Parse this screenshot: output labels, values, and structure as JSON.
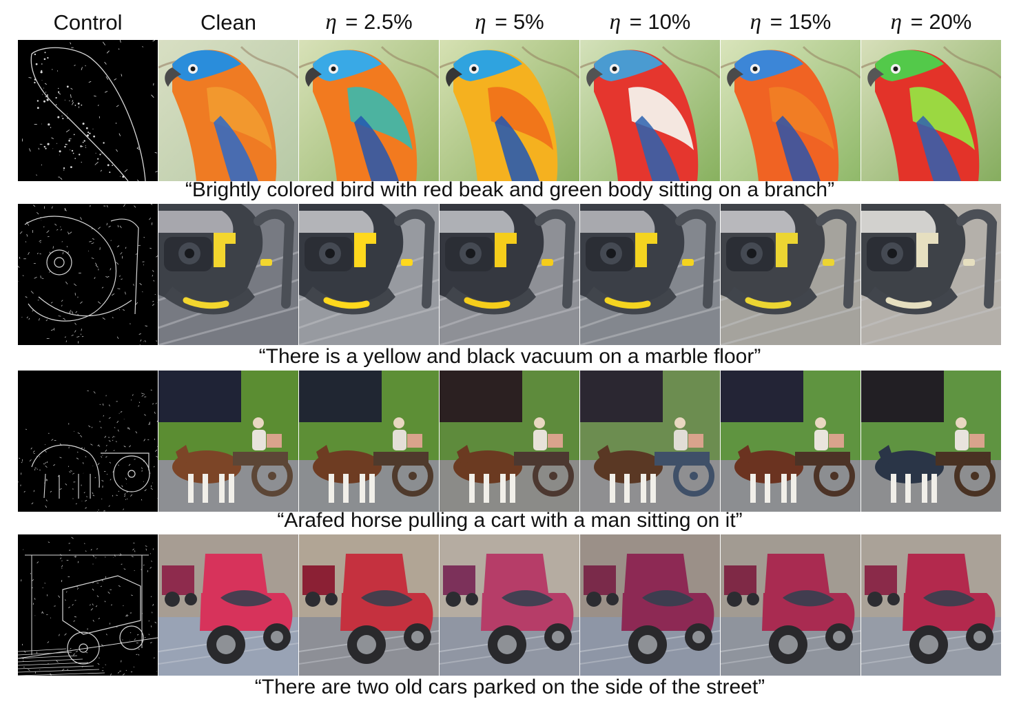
{
  "figure": {
    "columns": [
      "Control",
      "Clean",
      "η = 2.5%",
      "η = 5%",
      "η = 10%",
      "η = 15%",
      "η = 20%"
    ],
    "rows": [
      {
        "caption": "“Brightly colored bird with red beak and green body sitting on a branch”",
        "subject": "bird"
      },
      {
        "caption": "“There is a yellow and black vacuum on a marble floor”",
        "subject": "vacuum"
      },
      {
        "caption": "“Arafed horse pulling a cart with a man sitting on it”",
        "subject": "horse-cart"
      },
      {
        "caption": "“There are two old cars parked on the side of the street”",
        "subject": "old-cars"
      }
    ]
  }
}
